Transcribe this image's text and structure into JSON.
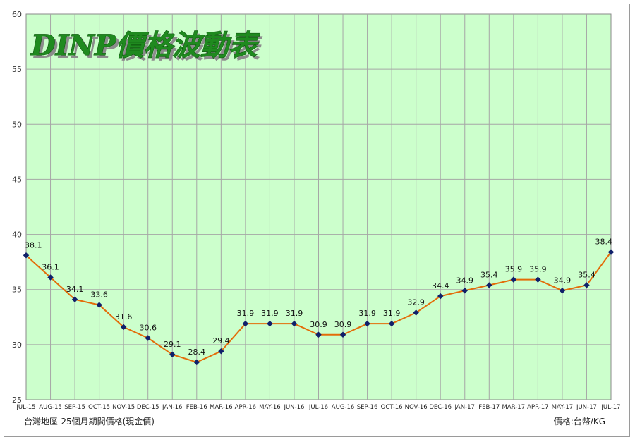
{
  "chart_data": {
    "type": "line",
    "title": "DINP價格波動表",
    "categories": [
      "JUL-15",
      "AUG-15",
      "SEP-15",
      "OCT-15",
      "NOV-15",
      "DEC-15",
      "JAN-16",
      "FEB-16",
      "MAR-16",
      "APR-16",
      "MAY-16",
      "JUN-16",
      "JUL-16",
      "AUG-16",
      "SEP-16",
      "OCT-16",
      "NOV-16",
      "DEC-16",
      "JAN-17",
      "FEB-17",
      "MAR-17",
      "APR-17",
      "MAY-17",
      "JUN-17",
      "JUL-17"
    ],
    "series": [
      {
        "values": [
          38.1,
          36.1,
          34.1,
          33.6,
          31.6,
          30.6,
          29.1,
          28.4,
          29.4,
          31.9,
          31.9,
          31.9,
          30.9,
          30.9,
          31.9,
          31.9,
          32.9,
          34.4,
          34.9,
          35.4,
          35.9,
          35.9,
          34.9,
          35.4,
          38.4
        ]
      }
    ],
    "y_ticks": [
      25,
      30,
      35,
      40,
      45,
      50,
      55,
      60
    ],
    "ylim": [
      25,
      60
    ],
    "grid": true,
    "colors": {
      "plot_background": "#ccffcc",
      "grid": "#a6a6a6",
      "line": "#e36c09",
      "marker": "#10206a",
      "title": "#1f8a1f"
    },
    "data_labels": true
  },
  "footer": {
    "left": "台灣地區-25個月期間價格(現金價)",
    "right": "價格:台幣/KG"
  }
}
